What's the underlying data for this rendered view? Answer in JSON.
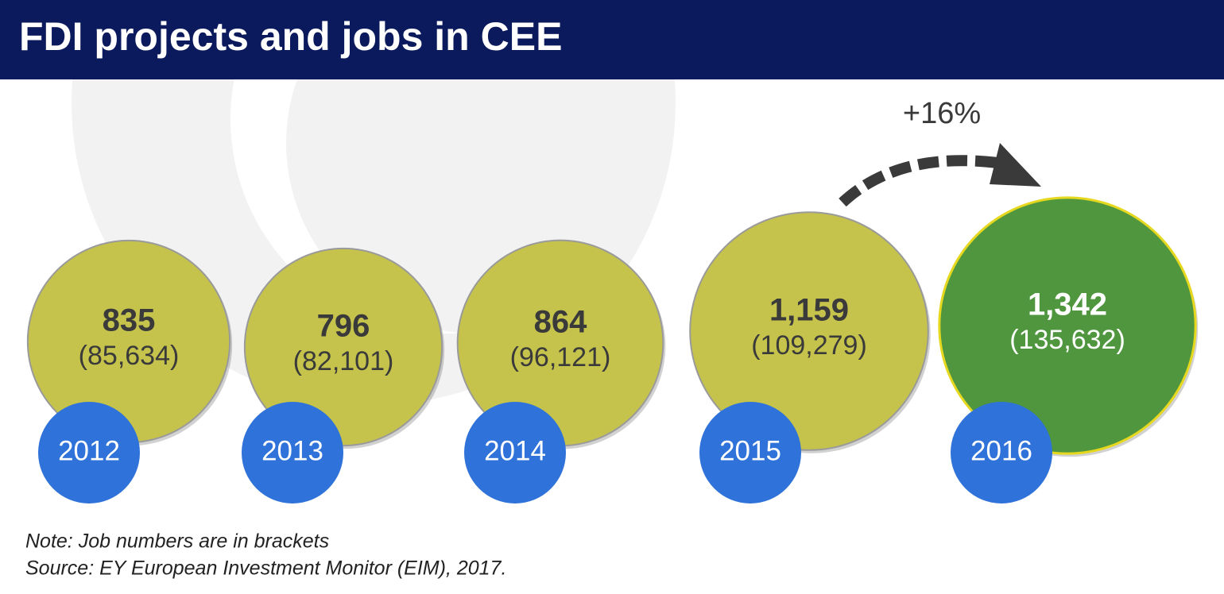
{
  "chart_data": {
    "type": "bubble",
    "title": "FDI projects and jobs in CEE",
    "categories": [
      "2012",
      "2013",
      "2014",
      "2015",
      "2016"
    ],
    "values": [
      835,
      796,
      864,
      1159,
      1342
    ],
    "value_labels": [
      "835",
      "796",
      "864",
      "1,159",
      "1,342"
    ],
    "jobs": [
      85634,
      82101,
      96121,
      109279,
      135632
    ],
    "jobs_labels": [
      "(85,634)",
      "(82,101)",
      "(96,121)",
      "(109,279)",
      "(135,632)"
    ],
    "colors": [
      "#c5c34c",
      "#c5c34c",
      "#c5c34c",
      "#c5c34c",
      "#4f963f"
    ],
    "year_color": "#2f72d9",
    "annotation": "+16%",
    "note": "Note: Job numbers are in brackets",
    "source": "Source: EY European Investment Monitor (EIM), 2017."
  }
}
